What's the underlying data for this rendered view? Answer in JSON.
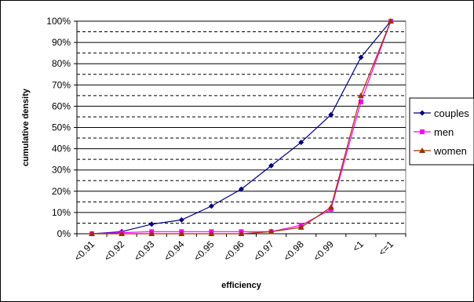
{
  "chart_data": {
    "type": "line",
    "title": "",
    "xlabel": "efficiency",
    "ylabel": "cumulative density",
    "categories": [
      "<0.91",
      "<0.92",
      "<0.93",
      "<0.94",
      "<0.95",
      "<0.96",
      "<0.97",
      "<0.98",
      "<0.99",
      "<1",
      "<=1"
    ],
    "ylim": [
      0,
      100
    ],
    "ytick_step": 10,
    "ytick_labels": [
      "0%",
      "10%",
      "20%",
      "30%",
      "40%",
      "50%",
      "60%",
      "70%",
      "80%",
      "90%",
      "100%"
    ],
    "grid": "horizontal, solid at major ticks and dashed at midpoints",
    "legend_position": "right",
    "series": [
      {
        "name": "couples",
        "color": "#000080",
        "marker": "diamond",
        "values": [
          0,
          1,
          4.5,
          6.5,
          13,
          21,
          32,
          43,
          56,
          83,
          100
        ]
      },
      {
        "name": "men",
        "color": "#ff00ff",
        "marker": "square",
        "values": [
          0,
          0.5,
          1,
          1,
          1,
          1,
          1,
          4,
          11.5,
          62,
          100
        ]
      },
      {
        "name": "women",
        "color": "#993300",
        "marker": "triangle",
        "values": [
          0,
          0,
          0,
          0,
          0,
          0,
          1,
          3,
          12.5,
          65,
          100
        ]
      }
    ]
  }
}
